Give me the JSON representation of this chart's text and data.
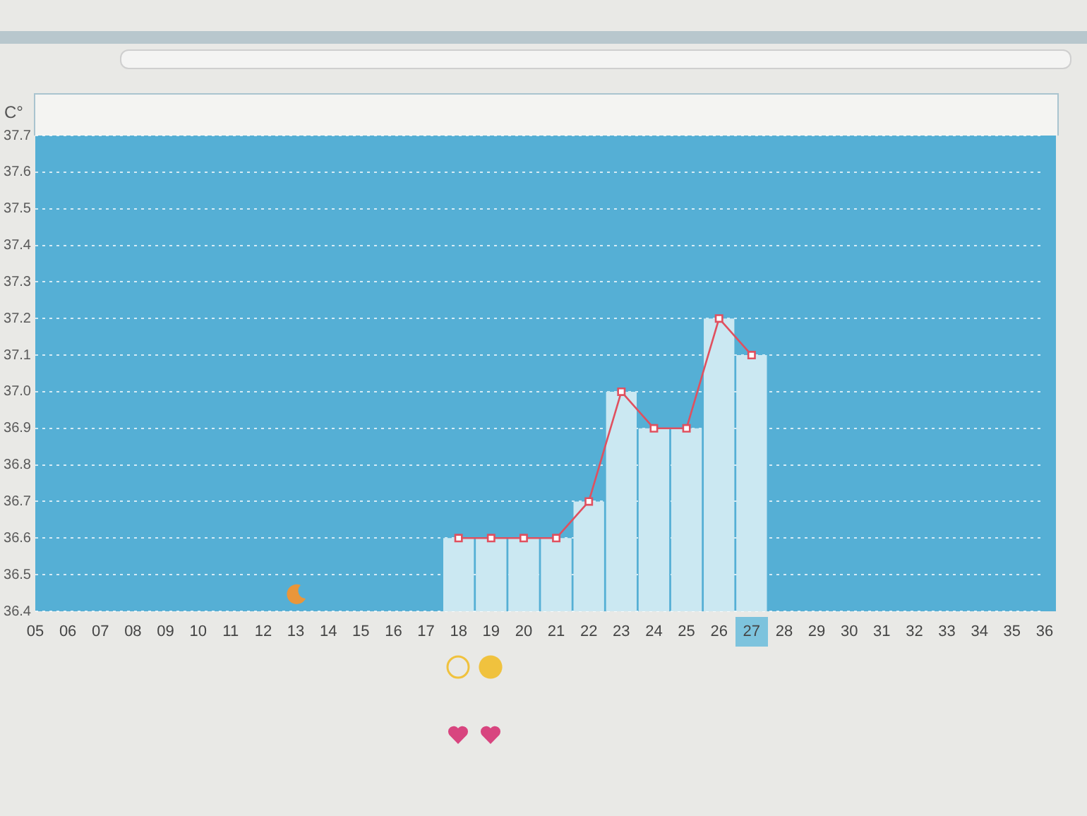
{
  "chart_data": {
    "type": "bar",
    "ylabel": "C°",
    "categories": [
      "05",
      "06",
      "07",
      "08",
      "09",
      "10",
      "11",
      "12",
      "13",
      "14",
      "15",
      "16",
      "17",
      "18",
      "19",
      "20",
      "21",
      "22",
      "23",
      "24",
      "25",
      "26",
      "27",
      "28",
      "29",
      "30",
      "31",
      "32",
      "33",
      "34",
      "35",
      "36"
    ],
    "series": [
      {
        "color": "#cbe8f2",
        "values": [
          null,
          null,
          null,
          null,
          null,
          null,
          null,
          null,
          null,
          null,
          null,
          null,
          null,
          36.6,
          36.6,
          36.6,
          36.6,
          36.7,
          37.0,
          36.9,
          36.9,
          37.2,
          37.1,
          null,
          null,
          null,
          null,
          null,
          null,
          null,
          null,
          null
        ]
      },
      {
        "type": "line",
        "color": "#e0505f",
        "values": [
          null,
          null,
          null,
          null,
          null,
          null,
          null,
          null,
          null,
          null,
          null,
          null,
          null,
          36.6,
          36.6,
          36.6,
          36.6,
          36.7,
          37.0,
          36.9,
          36.9,
          37.2,
          37.1,
          null,
          null,
          null,
          null,
          null,
          null,
          null,
          null,
          null
        ]
      }
    ],
    "ylim": [
      36.4,
      37.7
    ],
    "yticks": [
      36.4,
      36.5,
      36.6,
      36.7,
      36.8,
      36.9,
      {
        "value": 37,
        "label": "37.0"
      },
      37.1,
      37.2,
      37.3,
      37.4,
      37.5,
      37.6,
      37.7
    ],
    "grid": "y",
    "marker": "square"
  }
}
